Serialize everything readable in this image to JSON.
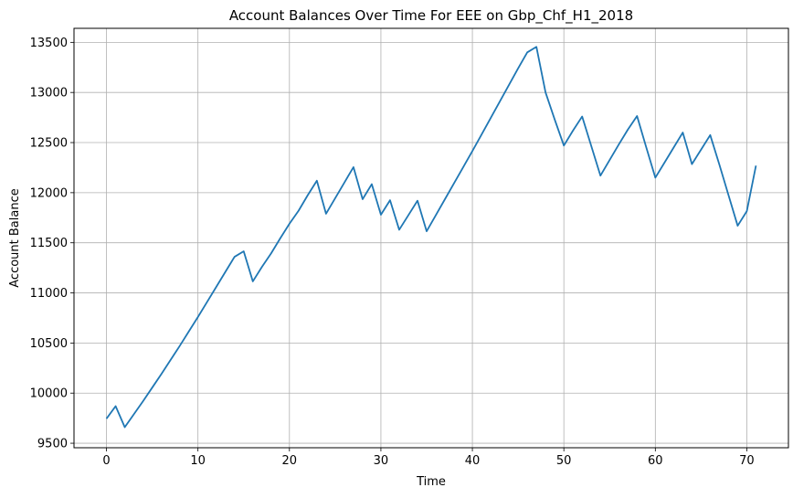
{
  "chart_data": {
    "type": "line",
    "title": "Account Balances Over Time For EEE on Gbp_Chf_H1_2018",
    "xlabel": "Time",
    "ylabel": "Account Balance",
    "xlim": [
      -3.55,
      74.55
    ],
    "ylim": [
      9455,
      13640
    ],
    "xticks": [
      0,
      10,
      20,
      30,
      40,
      50,
      60,
      70
    ],
    "yticks": [
      9500,
      10000,
      10500,
      11000,
      11500,
      12000,
      12500,
      13000,
      13500
    ],
    "grid": true,
    "series": [
      {
        "color": "#1f77b4",
        "x": [
          0,
          1,
          2,
          3,
          4,
          5,
          6,
          7,
          8,
          9,
          10,
          11,
          12,
          13,
          14,
          15,
          16,
          17,
          18,
          19,
          20,
          21,
          22,
          23,
          24,
          25,
          26,
          27,
          28,
          29,
          30,
          31,
          32,
          33,
          34,
          35,
          36,
          37,
          38,
          39,
          40,
          41,
          42,
          43,
          44,
          45,
          46,
          47,
          48,
          49,
          50,
          51,
          52,
          53,
          54,
          55,
          56,
          57,
          58,
          59,
          60,
          61,
          62,
          63,
          64,
          65,
          66,
          67,
          68,
          69,
          70,
          71
        ],
        "y": [
          9745,
          9870,
          9660,
          9790,
          9920,
          10055,
          10190,
          10330,
          10470,
          10615,
          10760,
          10910,
          11060,
          11210,
          11360,
          11415,
          11115,
          11260,
          11395,
          11545,
          11690,
          11820,
          11975,
          12120,
          11790,
          11945,
          12100,
          12255,
          11935,
          12085,
          11780,
          11925,
          11630,
          11775,
          11920,
          11615,
          11775,
          11935,
          12095,
          12255,
          12415,
          12580,
          12745,
          12910,
          13075,
          13240,
          13400,
          13455,
          13000,
          12730,
          12470,
          12620,
          12760,
          12465,
          12170,
          12325,
          12480,
          12630,
          12765,
          12455,
          12150,
          12300,
          12450,
          12600,
          12285,
          12430,
          12575,
          12280,
          11975,
          11670,
          11815,
          12270
        ]
      }
    ]
  }
}
